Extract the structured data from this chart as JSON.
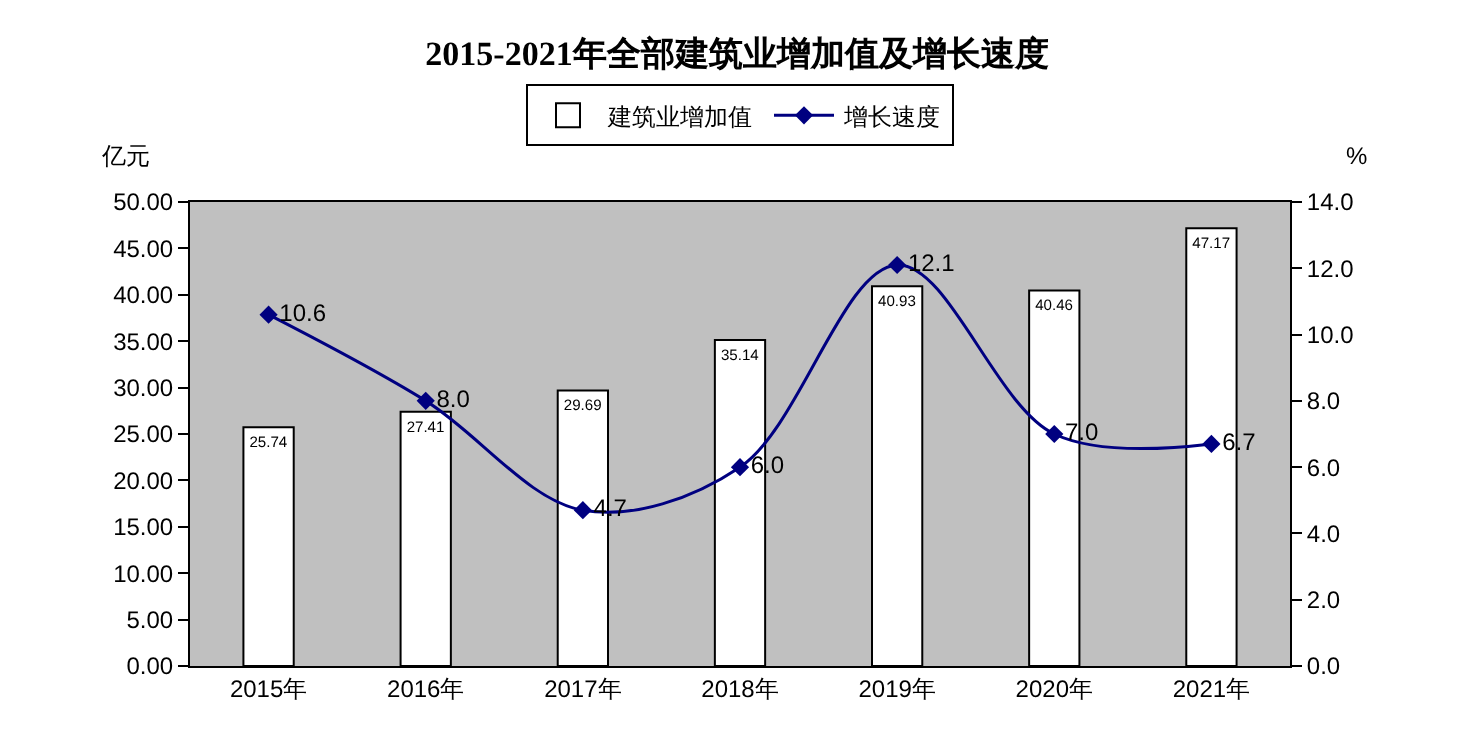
{
  "chart_data": {
    "type": "bar",
    "title": "2015-2021年全部建筑业增加值及增长速度",
    "ylabel": "亿元",
    "y2label": "%",
    "categories": [
      "2015年",
      "2016年",
      "2017年",
      "2018年",
      "2019年",
      "2020年",
      "2021年"
    ],
    "series": [
      {
        "name": "建筑业增加值",
        "color": "#ffffff",
        "values": [
          25.74,
          27.41,
          29.69,
          35.14,
          40.93,
          40.46,
          47.17
        ],
        "value_labels": [
          "25.74",
          "27.41",
          "29.69",
          "35.14",
          "40.93",
          "40.46",
          "47.17"
        ]
      },
      {
        "name": "增长速度",
        "type": "line",
        "axis": "y2",
        "color": "#000080",
        "marker": "diamond",
        "values": [
          10.6,
          8.0,
          4.7,
          6.0,
          12.1,
          7.0,
          6.7
        ],
        "value_labels": [
          "10.6",
          "8.0",
          "4.7",
          "6.0",
          "12.1",
          "7.0",
          "6.7"
        ]
      }
    ],
    "ylim": [
      0,
      50
    ],
    "yticks": [
      {
        "value": 0,
        "label": "0.00"
      },
      {
        "value": 5,
        "label": "5.00"
      },
      {
        "value": 10,
        "label": "10.00"
      },
      {
        "value": 15,
        "label": "15.00"
      },
      {
        "value": 20,
        "label": "20.00"
      },
      {
        "value": 25,
        "label": "25.00"
      },
      {
        "value": 30,
        "label": "30.00"
      },
      {
        "value": 35,
        "label": "35.00"
      },
      {
        "value": 40,
        "label": "40.00"
      },
      {
        "value": 45,
        "label": "45.00"
      },
      {
        "value": 50,
        "label": "50.00"
      }
    ],
    "y2lim": [
      0,
      14
    ],
    "y2ticks": [
      {
        "value": 0,
        "label": "0.0"
      },
      {
        "value": 2,
        "label": "2.0"
      },
      {
        "value": 4,
        "label": "4.0"
      },
      {
        "value": 6,
        "label": "6.0"
      },
      {
        "value": 8,
        "label": "8.0"
      },
      {
        "value": 10,
        "label": "10.0"
      },
      {
        "value": 12,
        "label": "12.0"
      },
      {
        "value": 14,
        "label": "14.0"
      }
    ],
    "grid": false,
    "legend": "top"
  }
}
